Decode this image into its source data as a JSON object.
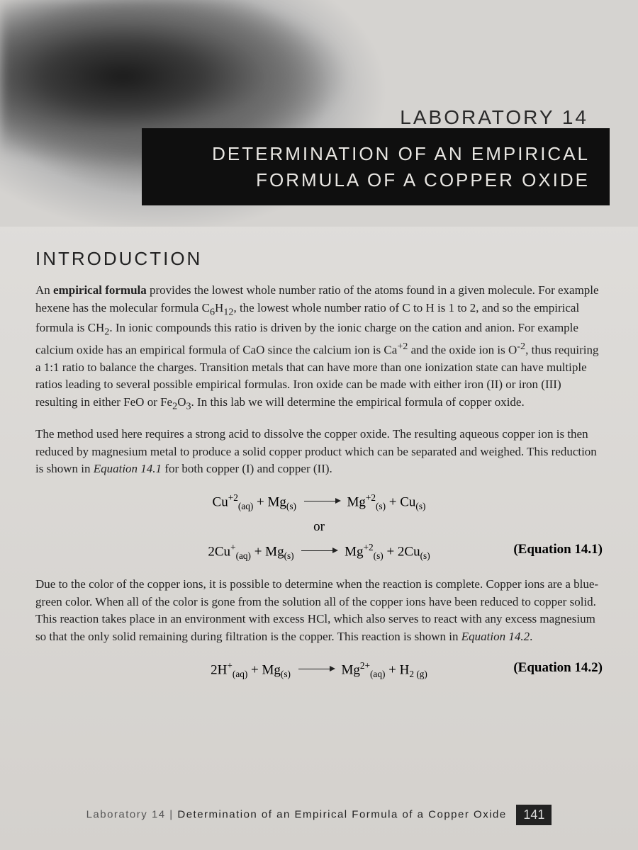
{
  "colors": {
    "page_bg": "#e8e6e4",
    "title_bg": "#0f0f0f",
    "title_fg": "#e8e6e2",
    "text": "#222222",
    "footer_muted": "#555555",
    "page_num_bg": "#222222",
    "page_num_fg": "#dddddd"
  },
  "typography": {
    "body_font": "Georgia, Times New Roman, serif",
    "heading_font": "Arial, Helvetica, sans-serif",
    "lab_label_size_pt": 21,
    "title_size_pt": 20,
    "heading_size_pt": 20,
    "body_size_pt": 13,
    "equation_size_pt": 14,
    "footer_size_pt": 11
  },
  "header": {
    "lab_label": "LABORATORY 14",
    "title_line1": "DETERMINATION OF AN EMPIRICAL",
    "title_line2": "FORMULA OF A COPPER OXIDE"
  },
  "sections": {
    "intro_heading": "INTRODUCTION"
  },
  "equations": {
    "label_14_1": "(Equation 14.1)",
    "label_14_2": "(Equation 14.2)",
    "or_text": "or"
  },
  "footer": {
    "lab_text": "Laboratory 14",
    "separator": " | ",
    "title_text": "Determination of an Empirical Formula of a Copper Oxide",
    "page_number": "141"
  }
}
